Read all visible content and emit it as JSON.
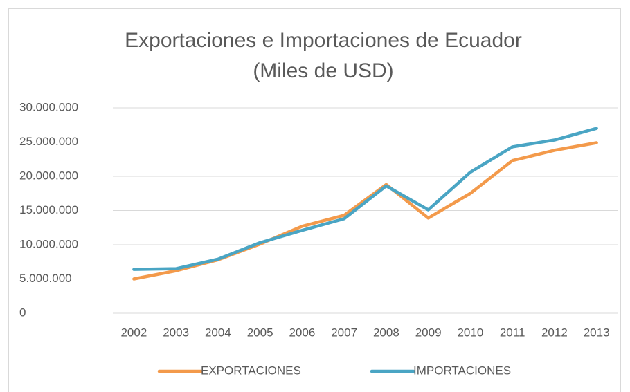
{
  "chart_data": {
    "type": "line",
    "title": "Exportaciones e Importaciones de Ecuador",
    "subtitle": "(Miles de USD)",
    "categories": [
      "2002",
      "2003",
      "2004",
      "2005",
      "2006",
      "2007",
      "2008",
      "2009",
      "2010",
      "2011",
      "2012",
      "2013"
    ],
    "series": [
      {
        "name": "EXPORTACIONES",
        "color": "#f39a4b",
        "values": [
          5000000,
          6200000,
          7800000,
          10100000,
          12700000,
          14300000,
          18800000,
          13900000,
          17500000,
          22300000,
          23800000,
          24900000
        ]
      },
      {
        "name": "IMPORTACIONES",
        "color": "#4aa5c4",
        "values": [
          6400000,
          6500000,
          7900000,
          10300000,
          12100000,
          13800000,
          18600000,
          15100000,
          20600000,
          24300000,
          25300000,
          27000000
        ]
      }
    ],
    "ylim": [
      0,
      30000000
    ],
    "yticks": [
      0,
      {
        "value": 5000000,
        "label": "5.000.000"
      },
      {
        "value": 10000000,
        "label": "10.000.000"
      },
      {
        "value": 15000000,
        "label": "15.000.000"
      },
      {
        "value": 20000000,
        "label": "20.000.000"
      },
      {
        "value": 25000000,
        "label": "25.000.000"
      },
      {
        "value": 30000000,
        "label": "30.000.000"
      }
    ],
    "grid": true,
    "legend": "bottom"
  }
}
